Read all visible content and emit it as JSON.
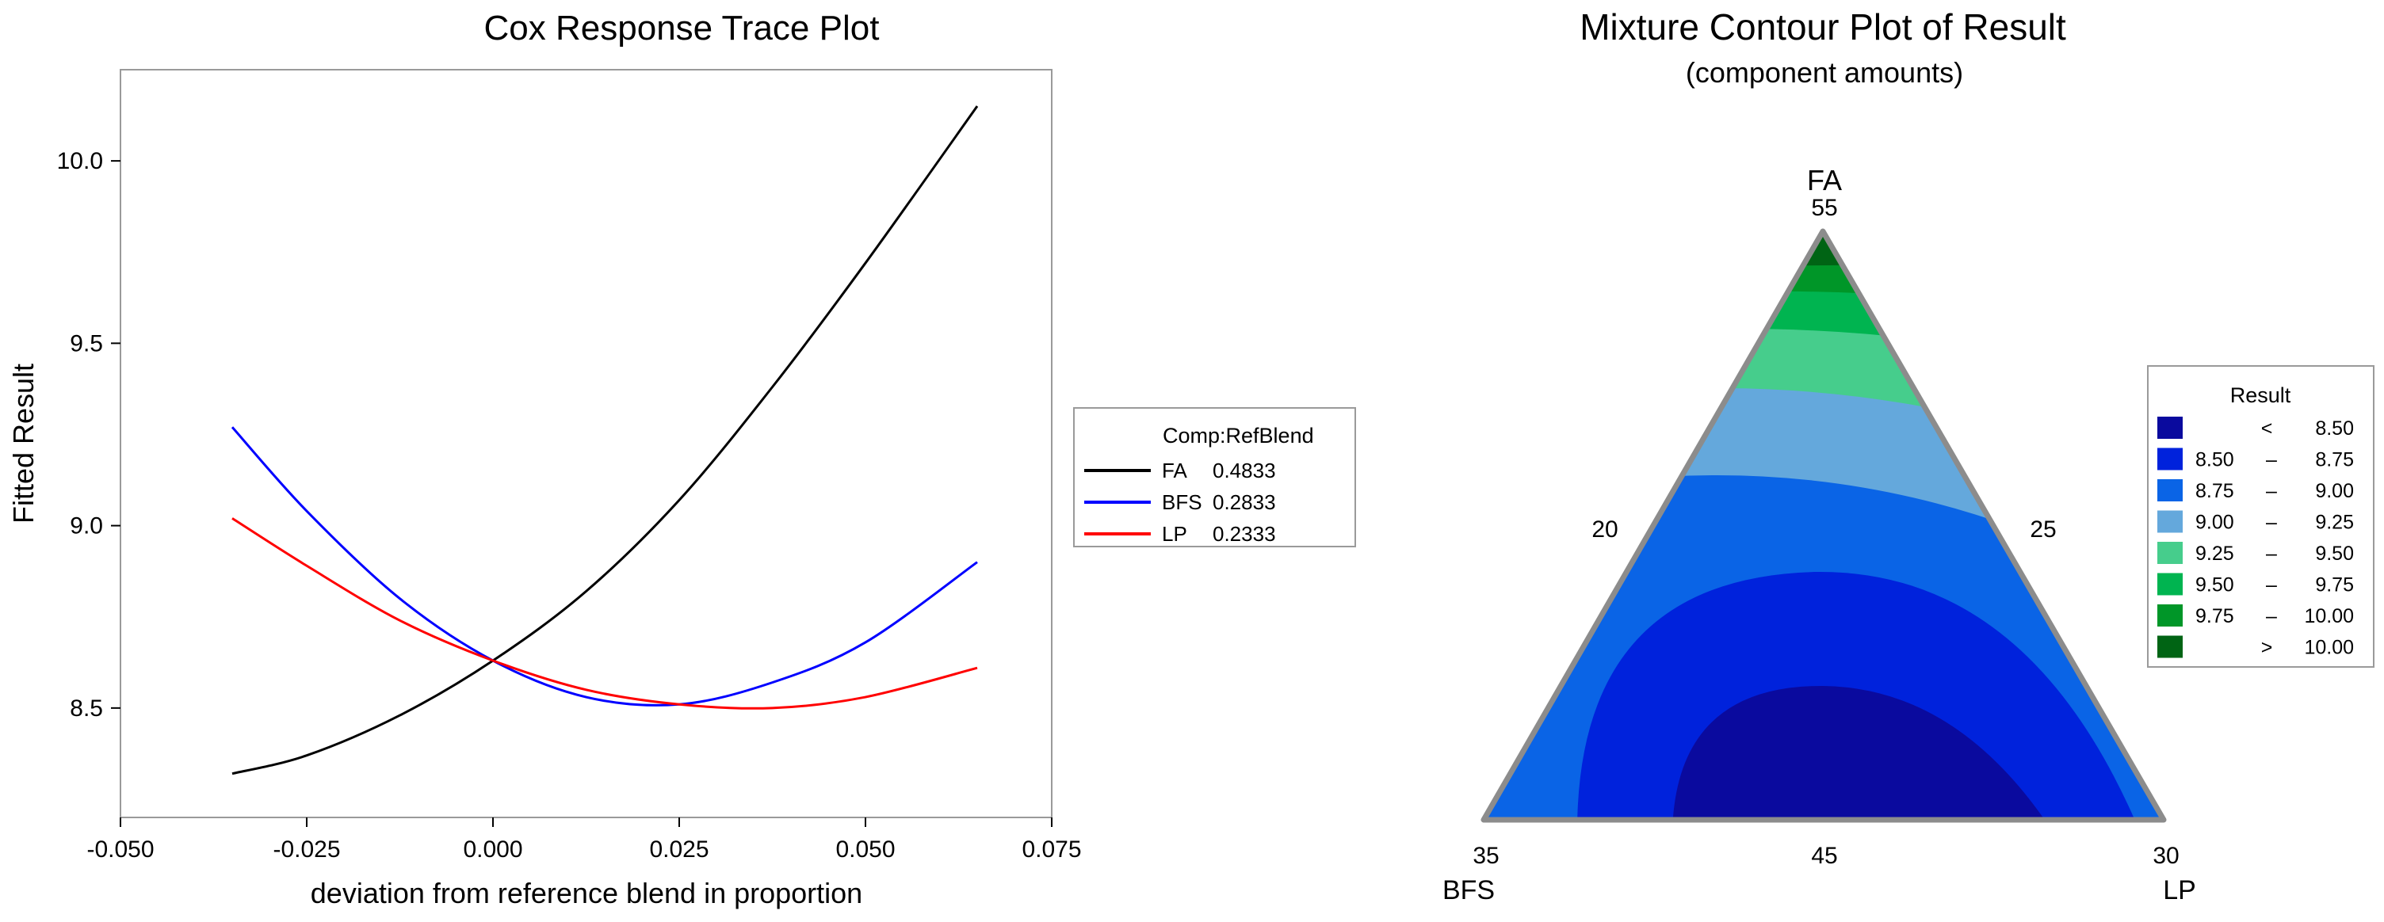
{
  "chart_data": [
    {
      "type": "line",
      "title": "Cox Response Trace Plot",
      "xlabel": "deviation from reference blend in proportion",
      "ylabel": "Fitted Result",
      "xlim": [
        -0.05,
        0.075
      ],
      "ylim": [
        8.2,
        10.25
      ],
      "xticks": [
        "-0.050",
        "-0.025",
        "0.000",
        "0.025",
        "0.050",
        "0.075"
      ],
      "xtick_values": [
        -0.05,
        -0.025,
        0.0,
        0.025,
        0.05,
        0.075
      ],
      "yticks": [
        "8.5",
        "9.0",
        "9.5",
        "10.0"
      ],
      "ytick_values": [
        8.5,
        9.0,
        9.5,
        10.0
      ],
      "legend": {
        "title": "Comp:RefBlend",
        "placement": "right",
        "entries": [
          {
            "name": "FA",
            "value": "0.4833"
          },
          {
            "name": "BFS",
            "value": "0.2833"
          },
          {
            "name": "LP",
            "value": "0.2333"
          }
        ]
      },
      "series": [
        {
          "name": "FA",
          "color": "#000000",
          "x": [
            -0.035,
            -0.025,
            -0.0125,
            0.0,
            0.0125,
            0.025,
            0.0375,
            0.05,
            0.065
          ],
          "y": [
            8.32,
            8.37,
            8.48,
            8.63,
            8.82,
            9.07,
            9.38,
            9.72,
            10.15
          ]
        },
        {
          "name": "BFS",
          "color": "#0000ff",
          "x": [
            -0.035,
            -0.025,
            -0.0125,
            0.0,
            0.0125,
            0.025,
            0.0375,
            0.05,
            0.065
          ],
          "y": [
            9.27,
            9.04,
            8.8,
            8.63,
            8.53,
            8.51,
            8.57,
            8.68,
            8.9
          ]
        },
        {
          "name": "LP",
          "color": "#ff0000",
          "x": [
            -0.035,
            -0.025,
            -0.0125,
            0.0,
            0.0125,
            0.025,
            0.0375,
            0.05,
            0.065
          ],
          "y": [
            9.02,
            8.89,
            8.74,
            8.63,
            8.55,
            8.51,
            8.5,
            8.53,
            8.61
          ]
        }
      ]
    },
    {
      "type": "heatmap",
      "title": "Mixture Contour Plot of Result",
      "subtitle": "(component amounts)",
      "vertices": {
        "top": {
          "name": "FA",
          "value": "55"
        },
        "left": {
          "name": "BFS",
          "value": "35"
        },
        "right": {
          "name": "LP",
          "value": "30"
        }
      },
      "side_labels": {
        "left": "20",
        "right": "25",
        "bottom": "45"
      },
      "legend": {
        "title": "Result",
        "placement": "right",
        "entries": [
          {
            "lo": "<",
            "hi": "8.50",
            "color": "#0a0a9e"
          },
          {
            "lo": "8.50",
            "dash": "–",
            "hi": "8.75",
            "color": "#0022dc"
          },
          {
            "lo": "8.75",
            "dash": "–",
            "hi": "9.00",
            "color": "#0a64e6"
          },
          {
            "lo": "9.00",
            "dash": "–",
            "hi": "9.25",
            "color": "#64a8dc"
          },
          {
            "lo": "9.25",
            "dash": "–",
            "hi": "9.50",
            "color": "#46cd8c"
          },
          {
            "lo": "9.50",
            "dash": "–",
            "hi": "9.75",
            "color": "#00b450"
          },
          {
            "lo": "9.75",
            "dash": "–",
            "hi": "10.00",
            "color": "#009628"
          },
          {
            "lo": ">",
            "hi": "10.00",
            "color": "#006414"
          }
        ]
      }
    }
  ]
}
